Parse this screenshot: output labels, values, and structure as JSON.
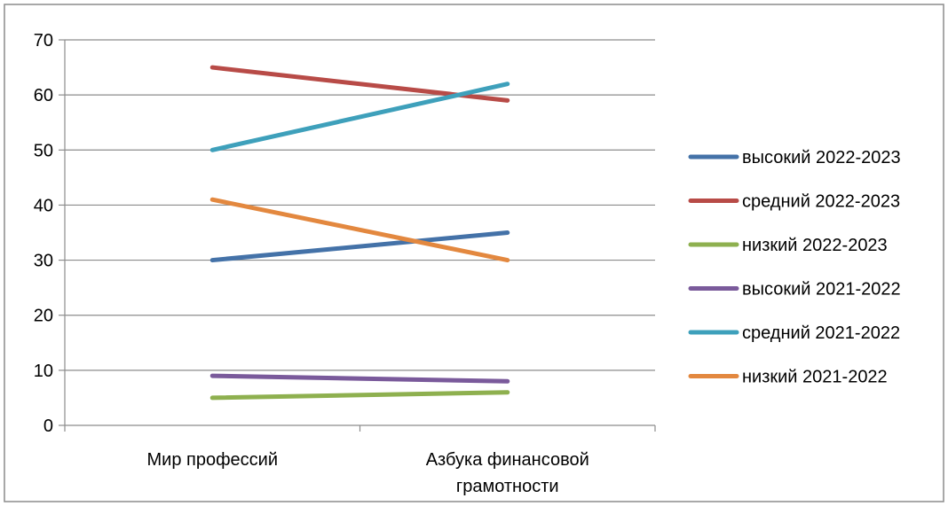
{
  "chart_data": {
    "type": "line",
    "categories": [
      "Мир профессий",
      "Азбука финансовой грамотности"
    ],
    "ylim": [
      0,
      70
    ],
    "yticks": [
      0,
      10,
      20,
      30,
      40,
      50,
      60,
      70
    ],
    "grid": true,
    "legend": "right",
    "series": [
      {
        "name": "высокий 2022-2023",
        "values": [
          30,
          35
        ],
        "color": "#4472a8"
      },
      {
        "name": "средний 2022-2023",
        "values": [
          65,
          59
        ],
        "color": "#b84b47"
      },
      {
        "name": "низкий 2022-2023",
        "values": [
          5,
          6
        ],
        "color": "#8eb04f"
      },
      {
        "name": "высокий 2021-2022",
        "values": [
          9,
          8
        ],
        "color": "#7a5a9b"
      },
      {
        "name": "средний 2021-2022",
        "values": [
          50,
          62
        ],
        "color": "#3ea0bb"
      },
      {
        "name": "низкий 2021-2022",
        "values": [
          41,
          30
        ],
        "color": "#e3883f"
      }
    ]
  }
}
